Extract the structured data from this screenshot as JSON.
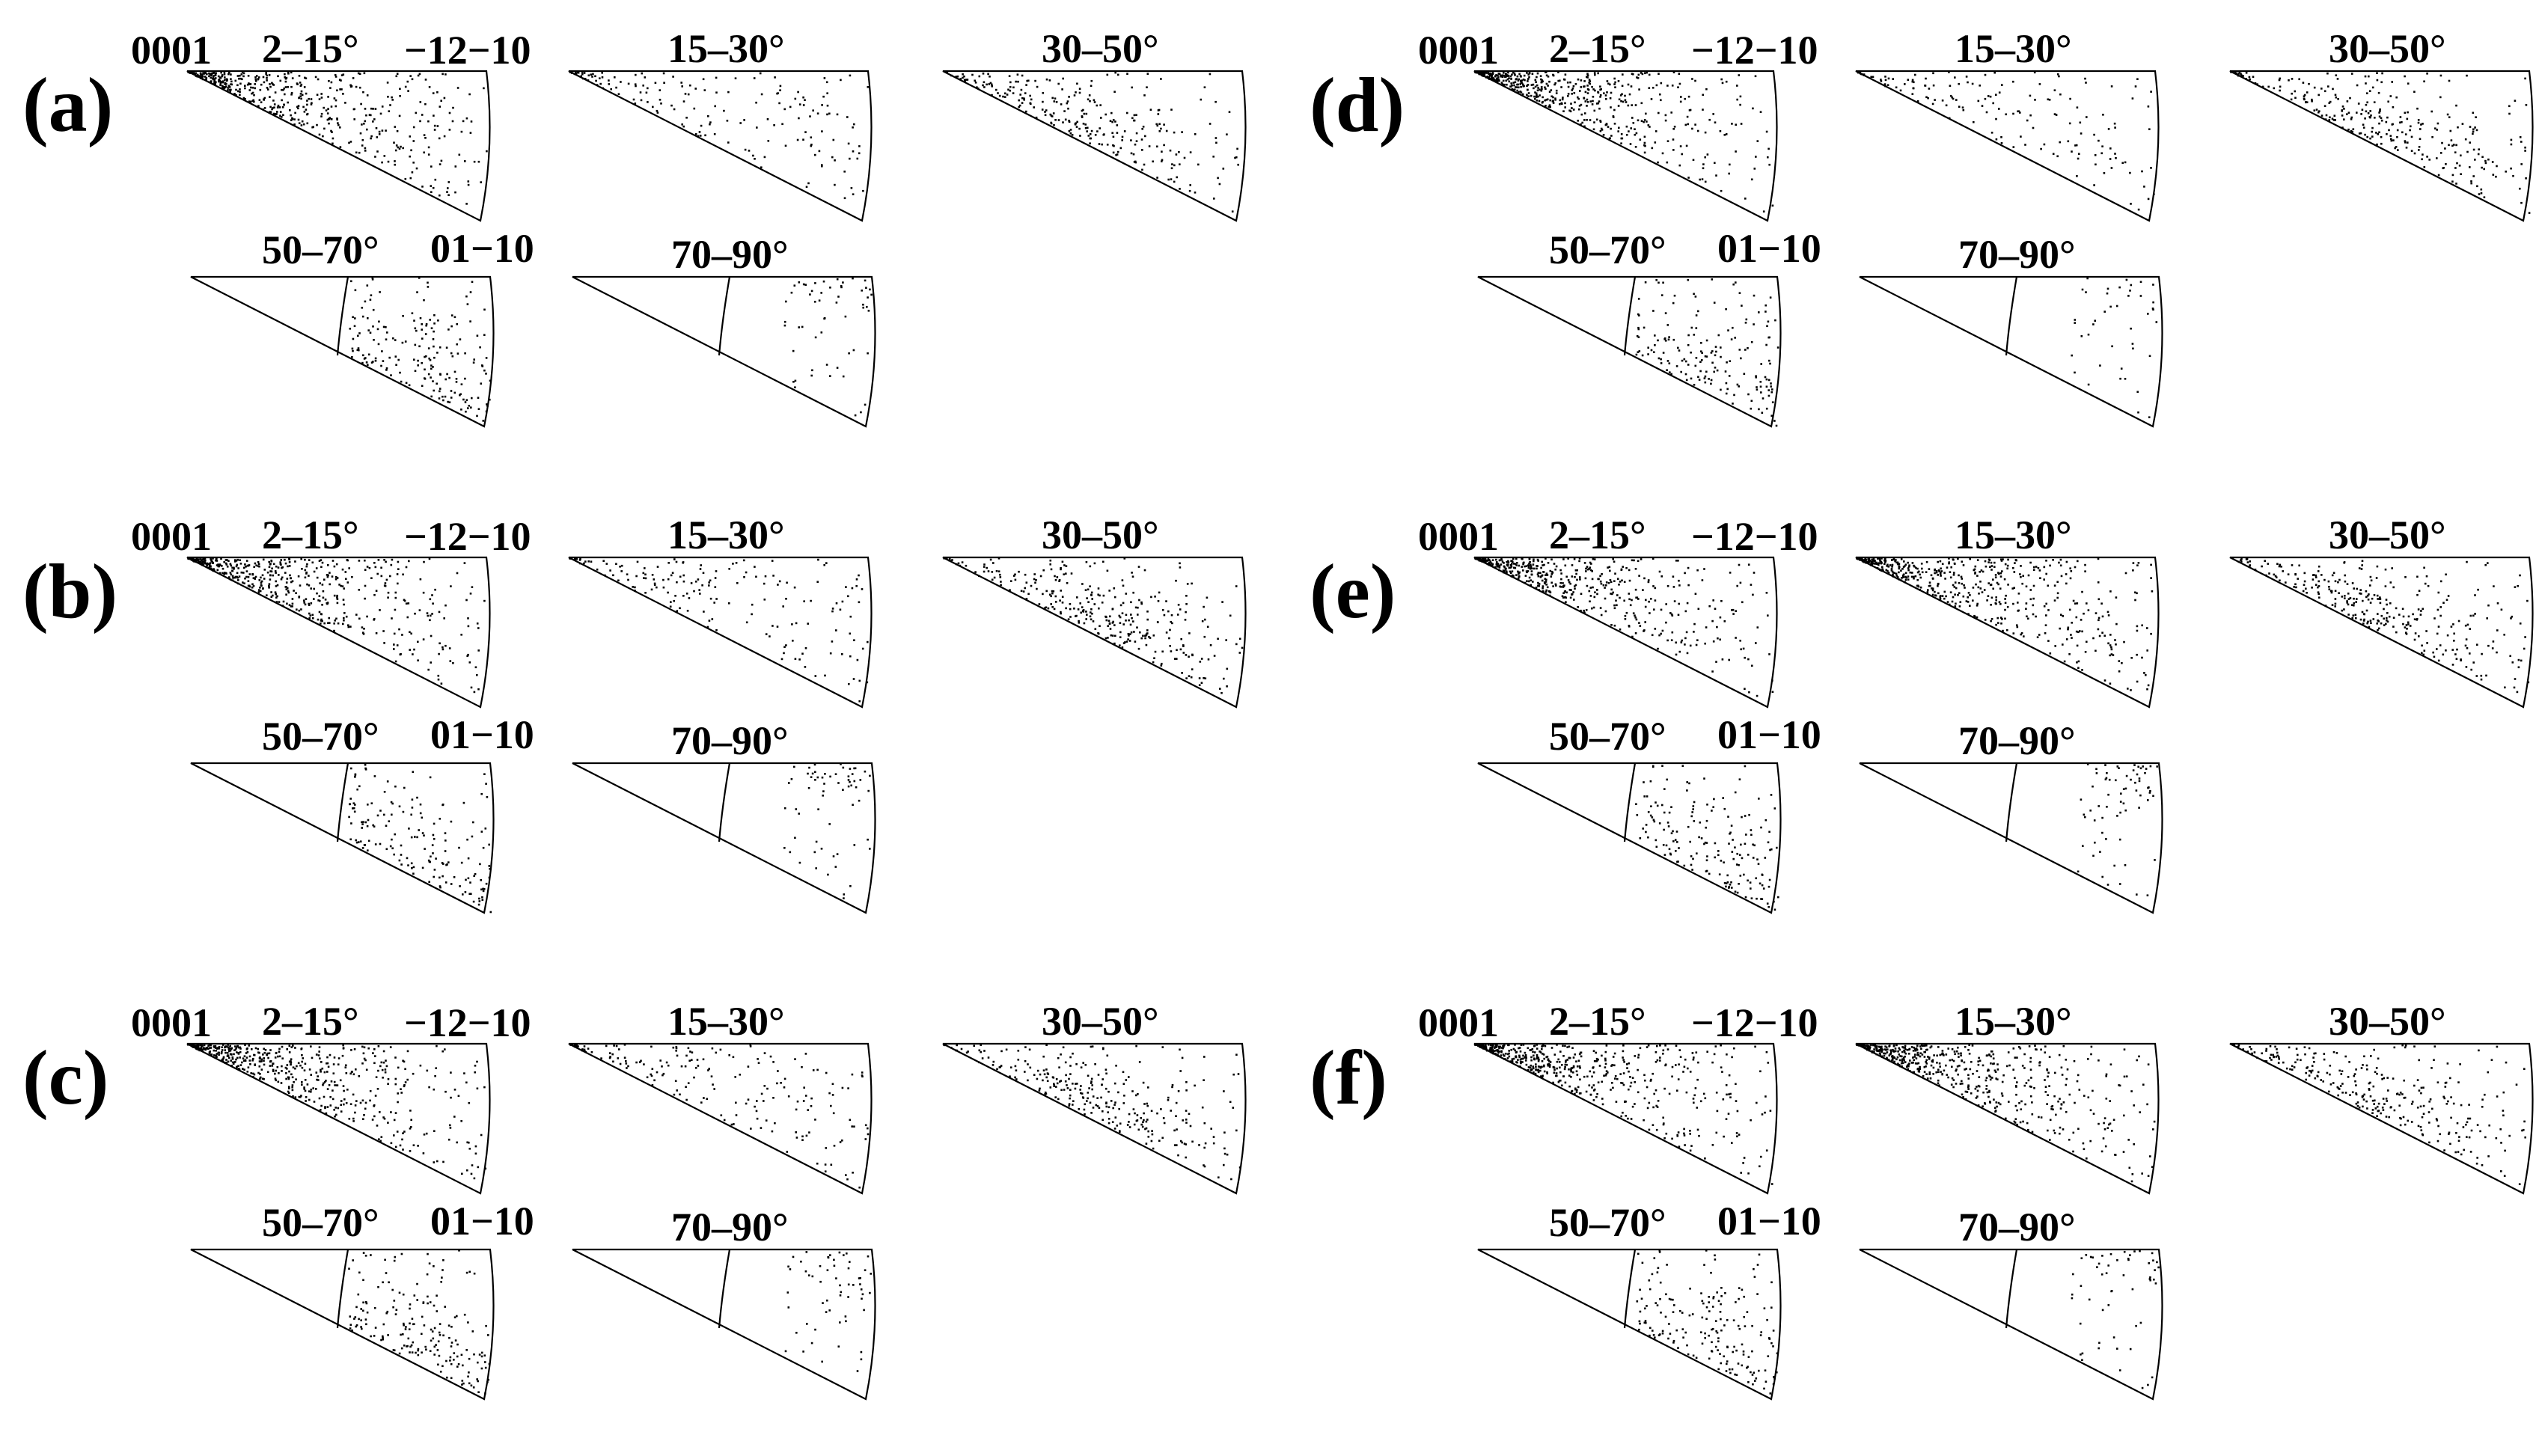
{
  "figure": {
    "colors": {
      "background": "#ffffff",
      "ink": "#000000"
    },
    "labels": {
      "top_left_vertex": "0001",
      "top_right_vertex": "−12−10",
      "bottom_vertex": "01−10"
    },
    "ranges": [
      "2–15°",
      "15–30°",
      "30–50°",
      "50–70°",
      "70–90°"
    ],
    "panels": [
      {
        "label": "(a)",
        "density_peak": [
          "left",
          "uniform",
          "center",
          "lower",
          "corner"
        ]
      },
      {
        "label": "(b)",
        "density_peak": [
          "left",
          "uniform",
          "center",
          "lower",
          "corner"
        ]
      },
      {
        "label": "(c)",
        "density_peak": [
          "left",
          "uniform",
          "center",
          "lower",
          "corner"
        ]
      },
      {
        "label": "(d)",
        "density_peak": [
          "left",
          "uniform",
          "center",
          "lower",
          "corner"
        ]
      },
      {
        "label": "(e)",
        "density_peak": [
          "left",
          "left",
          "center",
          "lower",
          "corner"
        ]
      },
      {
        "label": "(f)",
        "density_peak": [
          "left",
          "left",
          "center",
          "lower",
          "corner"
        ]
      }
    ]
  }
}
